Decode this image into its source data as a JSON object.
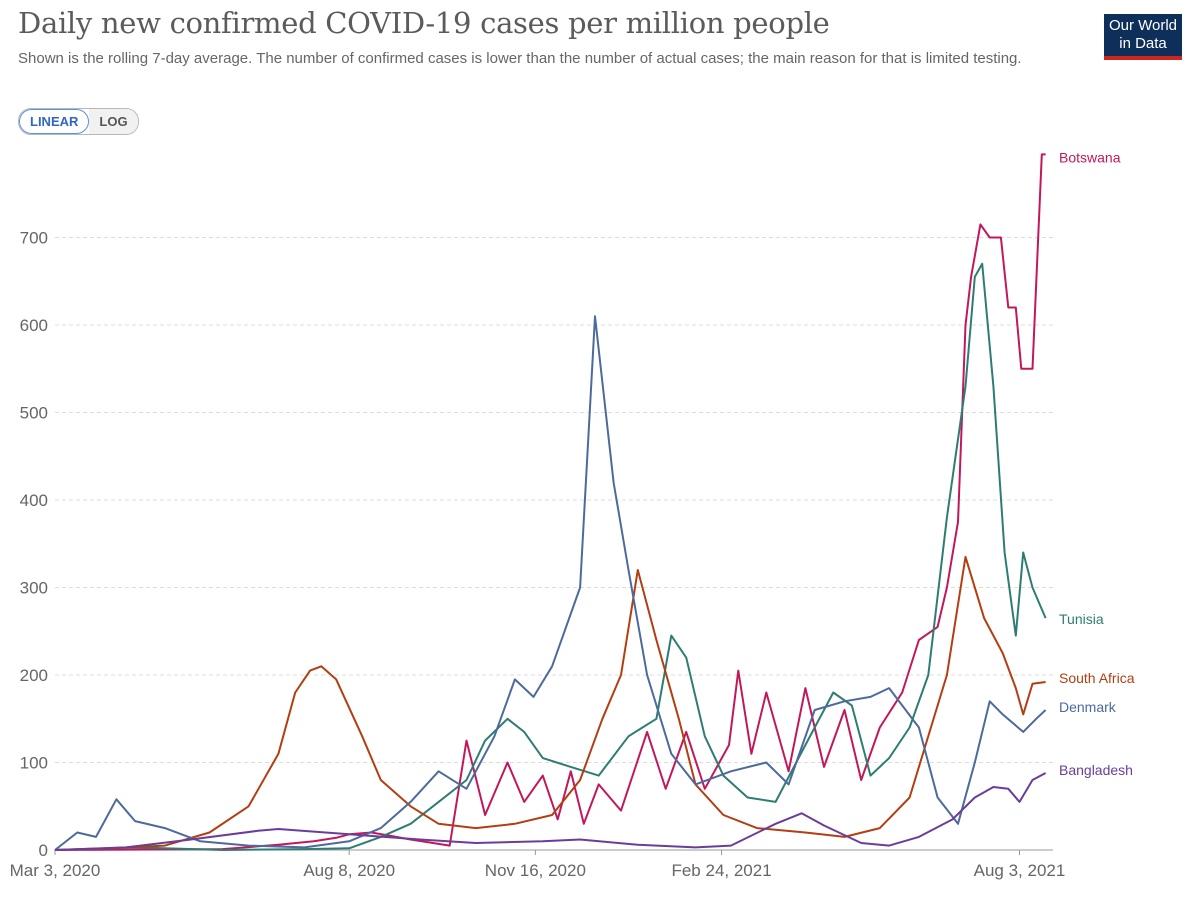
{
  "title": "Daily new confirmed COVID-19 cases per million people",
  "subtitle": "Shown is the rolling 7-day average. The number of confirmed cases is lower than the number of actual cases; the main reason for that is limited testing.",
  "logo": {
    "line1": "Our World",
    "line2": "in Data"
  },
  "toggle": {
    "linear": "LINEAR",
    "log": "LOG",
    "selected": "LINEAR"
  },
  "chart_data": {
    "type": "line",
    "title": "Daily new confirmed COVID-19 cases per million people",
    "xlabel": "",
    "ylabel": "",
    "xlim": [
      "2020-03-03",
      "2021-08-21"
    ],
    "ylim": [
      0,
      800
    ],
    "y_ticks": [
      0,
      100,
      200,
      300,
      400,
      500,
      600,
      700
    ],
    "x_ticks": [
      "Mar 3, 2020",
      "Aug 8, 2020",
      "Nov 16, 2020",
      "Feb 24, 2021",
      "Aug 3, 2021"
    ],
    "grid": "horizontal dashed",
    "legend": "line-end labels",
    "series": [
      {
        "name": "Botswana",
        "color": "#c2185b",
        "points": [
          [
            "2020-03-03",
            0
          ],
          [
            "2020-06-01",
            1
          ],
          [
            "2020-07-01",
            6
          ],
          [
            "2020-07-20",
            10
          ],
          [
            "2020-08-01",
            14
          ],
          [
            "2020-08-08",
            18
          ],
          [
            "2020-08-20",
            20
          ],
          [
            "2020-09-10",
            12
          ],
          [
            "2020-10-01",
            5
          ],
          [
            "2020-10-10",
            125
          ],
          [
            "2020-10-20",
            40
          ],
          [
            "2020-11-01",
            100
          ],
          [
            "2020-11-10",
            55
          ],
          [
            "2020-11-20",
            85
          ],
          [
            "2020-11-28",
            35
          ],
          [
            "2020-12-05",
            90
          ],
          [
            "2020-12-12",
            30
          ],
          [
            "2020-12-20",
            75
          ],
          [
            "2021-01-01",
            45
          ],
          [
            "2021-01-15",
            135
          ],
          [
            "2021-01-25",
            70
          ],
          [
            "2021-02-05",
            135
          ],
          [
            "2021-02-15",
            70
          ],
          [
            "2021-02-28",
            120
          ],
          [
            "2021-03-05",
            205
          ],
          [
            "2021-03-12",
            110
          ],
          [
            "2021-03-20",
            180
          ],
          [
            "2021-04-01",
            90
          ],
          [
            "2021-04-10",
            185
          ],
          [
            "2021-04-20",
            95
          ],
          [
            "2021-05-01",
            160
          ],
          [
            "2021-05-10",
            80
          ],
          [
            "2021-05-20",
            140
          ],
          [
            "2021-06-01",
            180
          ],
          [
            "2021-06-10",
            240
          ],
          [
            "2021-06-20",
            255
          ],
          [
            "2021-06-25",
            300
          ],
          [
            "2021-07-01",
            375
          ],
          [
            "2021-07-05",
            600
          ],
          [
            "2021-07-08",
            655
          ],
          [
            "2021-07-13",
            715
          ],
          [
            "2021-07-18",
            700
          ],
          [
            "2021-07-24",
            700
          ],
          [
            "2021-07-28",
            620
          ],
          [
            "2021-08-01",
            620
          ],
          [
            "2021-08-04",
            550
          ],
          [
            "2021-08-10",
            550
          ],
          [
            "2021-08-15",
            795
          ],
          [
            "2021-08-17",
            795
          ]
        ]
      },
      {
        "name": "Tunisia",
        "color": "#2e7d72",
        "points": [
          [
            "2020-03-03",
            0
          ],
          [
            "2020-03-20",
            1
          ],
          [
            "2020-04-15",
            3
          ],
          [
            "2020-06-01",
            0
          ],
          [
            "2020-07-15",
            1
          ],
          [
            "2020-08-08",
            2
          ],
          [
            "2020-08-25",
            15
          ],
          [
            "2020-09-10",
            30
          ],
          [
            "2020-09-25",
            55
          ],
          [
            "2020-10-10",
            80
          ],
          [
            "2020-10-20",
            125
          ],
          [
            "2020-11-01",
            150
          ],
          [
            "2020-11-10",
            135
          ],
          [
            "2020-11-20",
            105
          ],
          [
            "2020-12-05",
            95
          ],
          [
            "2020-12-20",
            85
          ],
          [
            "2021-01-05",
            130
          ],
          [
            "2021-01-20",
            150
          ],
          [
            "2021-01-28",
            245
          ],
          [
            "2021-02-05",
            220
          ],
          [
            "2021-02-15",
            130
          ],
          [
            "2021-02-25",
            85
          ],
          [
            "2021-03-10",
            60
          ],
          [
            "2021-03-25",
            55
          ],
          [
            "2021-04-10",
            120
          ],
          [
            "2021-04-25",
            180
          ],
          [
            "2021-05-05",
            165
          ],
          [
            "2021-05-15",
            85
          ],
          [
            "2021-05-25",
            105
          ],
          [
            "2021-06-05",
            140
          ],
          [
            "2021-06-15",
            200
          ],
          [
            "2021-06-25",
            380
          ],
          [
            "2021-07-05",
            530
          ],
          [
            "2021-07-10",
            655
          ],
          [
            "2021-07-14",
            670
          ],
          [
            "2021-07-20",
            530
          ],
          [
            "2021-07-26",
            340
          ],
          [
            "2021-08-01",
            245
          ],
          [
            "2021-08-05",
            340
          ],
          [
            "2021-08-10",
            300
          ],
          [
            "2021-08-17",
            265
          ]
        ]
      },
      {
        "name": "South Africa",
        "color": "#b33e12",
        "points": [
          [
            "2020-03-03",
            0
          ],
          [
            "2020-04-01",
            2
          ],
          [
            "2020-05-01",
            5
          ],
          [
            "2020-05-25",
            20
          ],
          [
            "2020-06-15",
            50
          ],
          [
            "2020-07-01",
            110
          ],
          [
            "2020-07-10",
            180
          ],
          [
            "2020-07-18",
            205
          ],
          [
            "2020-07-24",
            210
          ],
          [
            "2020-08-01",
            195
          ],
          [
            "2020-08-15",
            130
          ],
          [
            "2020-08-25",
            80
          ],
          [
            "2020-09-10",
            50
          ],
          [
            "2020-09-25",
            30
          ],
          [
            "2020-10-15",
            25
          ],
          [
            "2020-11-05",
            30
          ],
          [
            "2020-11-25",
            40
          ],
          [
            "2020-12-10",
            80
          ],
          [
            "2020-12-22",
            150
          ],
          [
            "2021-01-01",
            200
          ],
          [
            "2021-01-10",
            320
          ],
          [
            "2021-01-20",
            240
          ],
          [
            "2021-02-01",
            150
          ],
          [
            "2021-02-10",
            75
          ],
          [
            "2021-02-25",
            40
          ],
          [
            "2021-03-15",
            25
          ],
          [
            "2021-04-10",
            20
          ],
          [
            "2021-05-01",
            15
          ],
          [
            "2021-05-20",
            25
          ],
          [
            "2021-06-05",
            60
          ],
          [
            "2021-06-25",
            200
          ],
          [
            "2021-07-05",
            335
          ],
          [
            "2021-07-15",
            265
          ],
          [
            "2021-07-25",
            225
          ],
          [
            "2021-08-01",
            185
          ],
          [
            "2021-08-05",
            155
          ],
          [
            "2021-08-10",
            190
          ],
          [
            "2021-08-17",
            192
          ]
        ]
      },
      {
        "name": "Denmark",
        "color": "#4c6a9c",
        "points": [
          [
            "2020-03-03",
            0
          ],
          [
            "2020-03-15",
            20
          ],
          [
            "2020-03-25",
            15
          ],
          [
            "2020-04-05",
            58
          ],
          [
            "2020-04-15",
            33
          ],
          [
            "2020-05-01",
            25
          ],
          [
            "2020-05-20",
            10
          ],
          [
            "2020-06-15",
            5
          ],
          [
            "2020-07-15",
            3
          ],
          [
            "2020-08-08",
            10
          ],
          [
            "2020-08-25",
            25
          ],
          [
            "2020-09-10",
            55
          ],
          [
            "2020-09-25",
            90
          ],
          [
            "2020-10-10",
            70
          ],
          [
            "2020-10-25",
            130
          ],
          [
            "2020-11-05",
            195
          ],
          [
            "2020-11-15",
            175
          ],
          [
            "2020-11-25",
            210
          ],
          [
            "2020-12-10",
            300
          ],
          [
            "2020-12-18",
            610
          ],
          [
            "2020-12-28",
            420
          ],
          [
            "2021-01-05",
            320
          ],
          [
            "2021-01-15",
            200
          ],
          [
            "2021-01-28",
            110
          ],
          [
            "2021-02-10",
            75
          ],
          [
            "2021-03-01",
            90
          ],
          [
            "2021-03-20",
            100
          ],
          [
            "2021-04-01",
            75
          ],
          [
            "2021-04-15",
            160
          ],
          [
            "2021-05-01",
            170
          ],
          [
            "2021-05-15",
            175
          ],
          [
            "2021-05-25",
            185
          ],
          [
            "2021-06-10",
            140
          ],
          [
            "2021-06-20",
            60
          ],
          [
            "2021-07-01",
            30
          ],
          [
            "2021-07-10",
            100
          ],
          [
            "2021-07-18",
            170
          ],
          [
            "2021-07-25",
            155
          ],
          [
            "2021-08-05",
            135
          ],
          [
            "2021-08-12",
            150
          ],
          [
            "2021-08-17",
            160
          ]
        ]
      },
      {
        "name": "Bangladesh",
        "color": "#6a3d9a",
        "points": [
          [
            "2020-03-03",
            0
          ],
          [
            "2020-04-10",
            3
          ],
          [
            "2020-05-15",
            12
          ],
          [
            "2020-06-20",
            22
          ],
          [
            "2020-07-01",
            24
          ],
          [
            "2020-08-08",
            18
          ],
          [
            "2020-09-15",
            12
          ],
          [
            "2020-10-15",
            8
          ],
          [
            "2020-11-20",
            10
          ],
          [
            "2020-12-10",
            12
          ],
          [
            "2021-01-10",
            6
          ],
          [
            "2021-02-10",
            3
          ],
          [
            "2021-03-01",
            5
          ],
          [
            "2021-03-25",
            30
          ],
          [
            "2021-04-08",
            42
          ],
          [
            "2021-04-20",
            28
          ],
          [
            "2021-05-10",
            8
          ],
          [
            "2021-05-25",
            5
          ],
          [
            "2021-06-10",
            15
          ],
          [
            "2021-06-28",
            35
          ],
          [
            "2021-07-10",
            60
          ],
          [
            "2021-07-20",
            72
          ],
          [
            "2021-07-28",
            70
          ],
          [
            "2021-08-03",
            55
          ],
          [
            "2021-08-10",
            80
          ],
          [
            "2021-08-17",
            88
          ]
        ]
      }
    ]
  }
}
